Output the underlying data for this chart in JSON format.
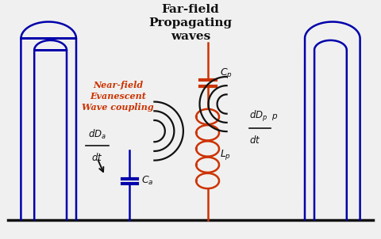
{
  "title": "Far-field\nPropagating\nwaves",
  "title_fontsize": 11,
  "bg_color": "#f0f0f0",
  "blue_color": "#0000aa",
  "black_color": "#111111",
  "red_color": "#cc2200",
  "orange_color": "#cc3300",
  "label_nearfield": "Near-field\nEvanescent\nWave coupling"
}
